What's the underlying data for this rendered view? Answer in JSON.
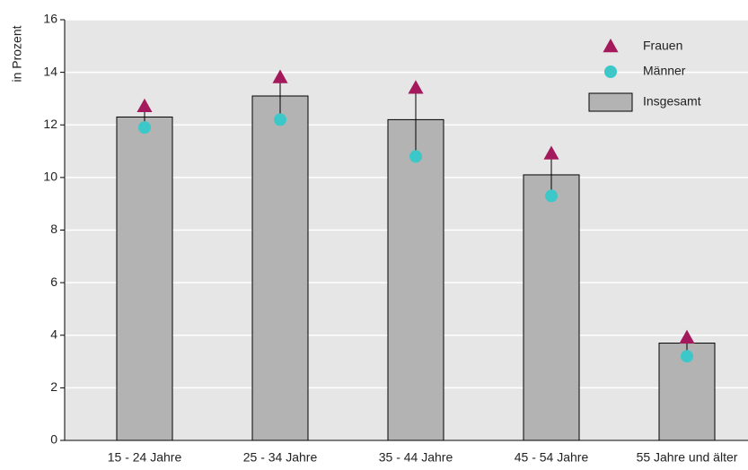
{
  "chart_data": {
    "type": "bar",
    "y_label": "in Prozent",
    "categories": [
      "15 - 24 Jahre",
      "25 - 34 Jahre",
      "35 - 44 Jahre",
      "45 - 54 Jahre",
      "55 Jahre und älter"
    ],
    "series": [
      {
        "name": "Frauen",
        "color": "#a3195b",
        "marker": "triangle",
        "values": [
          12.7,
          13.8,
          13.4,
          10.9,
          3.9
        ]
      },
      {
        "name": "Männer",
        "color": "#3cc8c8",
        "marker": "circle",
        "values": [
          11.9,
          12.2,
          10.8,
          9.3,
          3.2
        ]
      },
      {
        "name": "Insgesamt",
        "color": "#b3b3b3",
        "marker": "bar",
        "values": [
          12.3,
          13.1,
          12.2,
          10.1,
          3.7
        ]
      }
    ],
    "ylim": [
      0,
      16
    ],
    "yticks": [
      0,
      2,
      4,
      6,
      8,
      10,
      12,
      14,
      16
    ],
    "grid": true
  }
}
